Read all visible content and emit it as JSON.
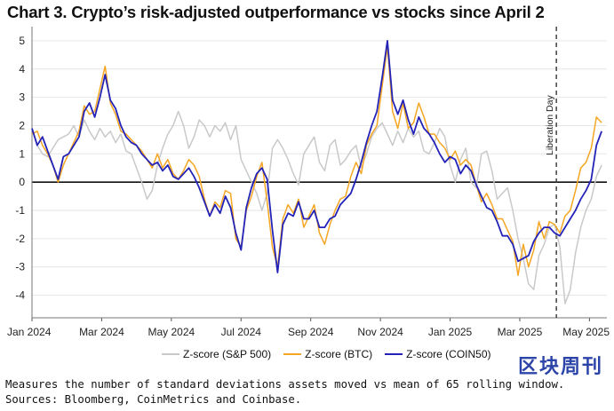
{
  "title": "Chart 3. Crypto’s risk-adjusted outperformance vs stocks since April 2",
  "notes": [
    "Measures the number of standard deviations assets moved vs mean of 65 rolling window.",
    "Sources: Bloomberg, CoinMetrics and Coinbase."
  ],
  "watermark": "区块周刊",
  "chart_data": {
    "type": "line",
    "title": "Chart 3. Crypto’s risk-adjusted outperformance vs stocks since April 2",
    "xlabel": "",
    "ylabel": "",
    "ylim": [
      -4.8,
      5.5
    ],
    "xlim": [
      0,
      16.5
    ],
    "yticks": [
      -4,
      -3,
      -2,
      -1,
      0,
      1,
      2,
      3,
      4,
      5
    ],
    "xticks": [
      {
        "pos": 0,
        "label": "Jan 2024"
      },
      {
        "pos": 2,
        "label": "Mar 2024"
      },
      {
        "pos": 4,
        "label": "May 2024"
      },
      {
        "pos": 6,
        "label": "Jul 2024"
      },
      {
        "pos": 8,
        "label": "Sep 2024"
      },
      {
        "pos": 10,
        "label": "Nov 2024"
      },
      {
        "pos": 12,
        "label": "Jan 2025"
      },
      {
        "pos": 14,
        "label": "Mar 2025"
      },
      {
        "pos": 16,
        "label": "May 2025"
      }
    ],
    "annotation": {
      "label": "Liberation Day",
      "x": 15.05
    },
    "zero_line": true,
    "series": [
      {
        "name": "Z-score (S&P 500)",
        "color": "#c9c9c9",
        "x": [
          0,
          0.15,
          0.3,
          0.45,
          0.6,
          0.75,
          0.9,
          1.05,
          1.2,
          1.35,
          1.5,
          1.65,
          1.8,
          1.95,
          2.1,
          2.25,
          2.4,
          2.55,
          2.7,
          2.85,
          3.0,
          3.15,
          3.3,
          3.45,
          3.6,
          3.75,
          3.9,
          4.05,
          4.2,
          4.35,
          4.5,
          4.65,
          4.8,
          4.95,
          5.1,
          5.25,
          5.4,
          5.55,
          5.7,
          5.85,
          6.0,
          6.15,
          6.3,
          6.45,
          6.6,
          6.75,
          6.9,
          7.05,
          7.2,
          7.35,
          7.5,
          7.65,
          7.8,
          7.95,
          8.1,
          8.25,
          8.4,
          8.55,
          8.7,
          8.85,
          9.0,
          9.15,
          9.3,
          9.45,
          9.6,
          9.75,
          9.9,
          10.05,
          10.2,
          10.35,
          10.5,
          10.65,
          10.8,
          10.95,
          11.1,
          11.25,
          11.4,
          11.55,
          11.7,
          11.85,
          12.0,
          12.15,
          12.3,
          12.45,
          12.6,
          12.75,
          12.9,
          13.05,
          13.2,
          13.35,
          13.5,
          13.65,
          13.8,
          13.95,
          14.1,
          14.25,
          14.4,
          14.55,
          14.7,
          14.85,
          15.0,
          15.15,
          15.3,
          15.45,
          15.6,
          15.75,
          15.9,
          16.05,
          16.2,
          16.35
        ],
        "y": [
          1.9,
          1.3,
          1.0,
          0.9,
          1.2,
          1.5,
          1.6,
          1.7,
          2.0,
          1.6,
          2.2,
          1.8,
          1.5,
          1.9,
          1.6,
          1.8,
          1.4,
          1.7,
          1.1,
          1.0,
          0.5,
          0.0,
          -0.6,
          -0.3,
          0.6,
          1.2,
          1.7,
          2.0,
          2.5,
          2.0,
          1.2,
          1.6,
          2.2,
          2.0,
          1.6,
          2.0,
          1.8,
          2.1,
          1.5,
          2.0,
          0.8,
          0.4,
          0.0,
          -0.4,
          -1.0,
          -0.4,
          1.2,
          1.5,
          1.2,
          0.8,
          0.3,
          -0.1,
          1.0,
          1.3,
          1.6,
          0.7,
          0.4,
          1.3,
          1.5,
          0.6,
          0.8,
          1.1,
          1.3,
          0.5,
          1.0,
          1.6,
          1.9,
          2.1,
          1.7,
          1.3,
          1.8,
          1.4,
          1.9,
          1.6,
          1.8,
          1.1,
          1.0,
          1.4,
          1.9,
          1.6,
          0.6,
          0.0,
          0.8,
          1.2,
          0.0,
          -0.2,
          1.0,
          1.1,
          0.4,
          -0.6,
          -0.4,
          -0.2,
          -1.0,
          -2.0,
          -2.7,
          -3.6,
          -3.8,
          -2.6,
          -2.2,
          -1.6,
          -1.5,
          -2.3,
          -4.3,
          -3.8,
          -2.5,
          -1.6,
          -1.0,
          -0.6,
          0.2,
          0.6
        ]
      },
      {
        "name": "Z-score (BTC)",
        "color": "#f5a623",
        "x": [
          0,
          0.15,
          0.3,
          0.45,
          0.6,
          0.75,
          0.9,
          1.05,
          1.2,
          1.35,
          1.5,
          1.65,
          1.8,
          1.95,
          2.1,
          2.25,
          2.4,
          2.55,
          2.7,
          2.85,
          3.0,
          3.15,
          3.3,
          3.45,
          3.6,
          3.75,
          3.9,
          4.05,
          4.2,
          4.35,
          4.5,
          4.65,
          4.8,
          4.95,
          5.1,
          5.25,
          5.4,
          5.55,
          5.7,
          5.85,
          6.0,
          6.15,
          6.3,
          6.45,
          6.6,
          6.75,
          6.9,
          7.05,
          7.2,
          7.35,
          7.5,
          7.65,
          7.8,
          7.95,
          8.1,
          8.25,
          8.4,
          8.55,
          8.7,
          8.85,
          9.0,
          9.15,
          9.3,
          9.45,
          9.6,
          9.75,
          9.9,
          10.05,
          10.2,
          10.35,
          10.5,
          10.65,
          10.8,
          10.95,
          11.1,
          11.25,
          11.4,
          11.55,
          11.7,
          11.85,
          12.0,
          12.15,
          12.3,
          12.45,
          12.6,
          12.75,
          12.9,
          13.05,
          13.2,
          13.35,
          13.5,
          13.65,
          13.8,
          13.95,
          14.1,
          14.25,
          14.4,
          14.55,
          14.7,
          14.85,
          15.0,
          15.15,
          15.3,
          15.45,
          15.6,
          15.75,
          15.9,
          16.05,
          16.2,
          16.35
        ],
        "y": [
          1.7,
          1.8,
          1.3,
          1.0,
          0.6,
          0.0,
          0.6,
          1.0,
          1.4,
          1.8,
          2.7,
          2.4,
          2.5,
          3.3,
          4.1,
          2.8,
          2.4,
          1.8,
          1.7,
          1.5,
          1.3,
          1.1,
          0.8,
          0.5,
          1.0,
          0.5,
          0.8,
          0.3,
          0.1,
          0.4,
          0.8,
          0.6,
          0.2,
          -0.6,
          -1.2,
          -0.7,
          -0.9,
          -0.3,
          -0.4,
          -2.0,
          -2.3,
          -1.0,
          -0.5,
          0.2,
          0.7,
          -0.7,
          -2.3,
          -3.0,
          -1.3,
          -0.8,
          -1.1,
          -0.6,
          -1.6,
          -1.2,
          -0.8,
          -1.8,
          -2.2,
          -1.5,
          -1.0,
          -0.6,
          -0.5,
          0.2,
          0.7,
          0.3,
          1.3,
          1.7,
          2.0,
          3.4,
          4.8,
          2.5,
          1.9,
          2.8,
          1.9,
          2.1,
          2.8,
          2.3,
          1.7,
          1.7,
          1.4,
          1.2,
          0.8,
          1.1,
          0.6,
          0.8,
          0.6,
          -0.1,
          -0.7,
          -0.4,
          -0.8,
          -1.3,
          -1.3,
          -1.7,
          -2.1,
          -3.3,
          -2.2,
          -3.0,
          -2.4,
          -1.4,
          -2.0,
          -1.4,
          -1.5,
          -1.8,
          -1.2,
          -1.0,
          -0.3,
          0.5,
          0.7,
          1.2,
          2.3,
          2.1
        ]
      },
      {
        "name": "Z-score (COIN50)",
        "color": "#2323b8",
        "x": [
          0,
          0.15,
          0.3,
          0.45,
          0.6,
          0.75,
          0.9,
          1.05,
          1.2,
          1.35,
          1.5,
          1.65,
          1.8,
          1.95,
          2.1,
          2.25,
          2.4,
          2.55,
          2.7,
          2.85,
          3.0,
          3.15,
          3.3,
          3.45,
          3.6,
          3.75,
          3.9,
          4.05,
          4.2,
          4.35,
          4.5,
          4.65,
          4.8,
          4.95,
          5.1,
          5.25,
          5.4,
          5.55,
          5.7,
          5.85,
          6.0,
          6.15,
          6.3,
          6.45,
          6.6,
          6.75,
          6.9,
          7.05,
          7.2,
          7.35,
          7.5,
          7.65,
          7.8,
          7.95,
          8.1,
          8.25,
          8.4,
          8.55,
          8.7,
          8.85,
          9.0,
          9.15,
          9.3,
          9.45,
          9.6,
          9.75,
          9.9,
          10.05,
          10.2,
          10.35,
          10.5,
          10.65,
          10.8,
          10.95,
          11.1,
          11.25,
          11.4,
          11.55,
          11.7,
          11.85,
          12.0,
          12.15,
          12.3,
          12.45,
          12.6,
          12.75,
          12.9,
          13.05,
          13.2,
          13.35,
          13.5,
          13.65,
          13.8,
          13.95,
          14.1,
          14.25,
          14.4,
          14.55,
          14.7,
          14.85,
          15.0,
          15.15,
          15.3,
          15.45,
          15.6,
          15.75,
          15.9,
          16.05,
          16.2,
          16.35
        ],
        "y": [
          1.9,
          1.3,
          1.6,
          1.1,
          0.6,
          0.1,
          0.9,
          1.0,
          1.3,
          1.6,
          2.5,
          2.8,
          2.3,
          3.0,
          3.8,
          2.9,
          2.6,
          2.0,
          1.6,
          1.4,
          1.3,
          1.0,
          0.8,
          0.6,
          0.7,
          0.4,
          0.6,
          0.2,
          0.1,
          0.3,
          0.5,
          0.2,
          -0.2,
          -0.7,
          -1.2,
          -0.8,
          -1.1,
          -0.5,
          -0.9,
          -1.8,
          -2.4,
          -0.9,
          -0.2,
          0.3,
          0.5,
          0.1,
          -1.7,
          -3.2,
          -1.5,
          -1.1,
          -1.2,
          -0.7,
          -1.3,
          -1.3,
          -1.0,
          -1.6,
          -1.6,
          -1.3,
          -1.2,
          -0.8,
          -0.6,
          -0.4,
          0.1,
          0.7,
          1.4,
          2.0,
          2.5,
          3.7,
          5.0,
          2.9,
          2.4,
          2.9,
          2.2,
          1.7,
          2.3,
          1.9,
          1.7,
          1.4,
          1.0,
          0.7,
          0.9,
          0.8,
          0.3,
          0.6,
          0.4,
          -0.1,
          -0.5,
          -0.9,
          -1.0,
          -1.4,
          -1.9,
          -1.9,
          -2.2,
          -2.8,
          -2.7,
          -2.6,
          -2.1,
          -1.8,
          -1.6,
          -1.6,
          -1.8,
          -1.9,
          -1.6,
          -1.3,
          -1.0,
          -0.6,
          -0.3,
          0.1,
          1.3,
          1.8
        ]
      }
    ]
  }
}
